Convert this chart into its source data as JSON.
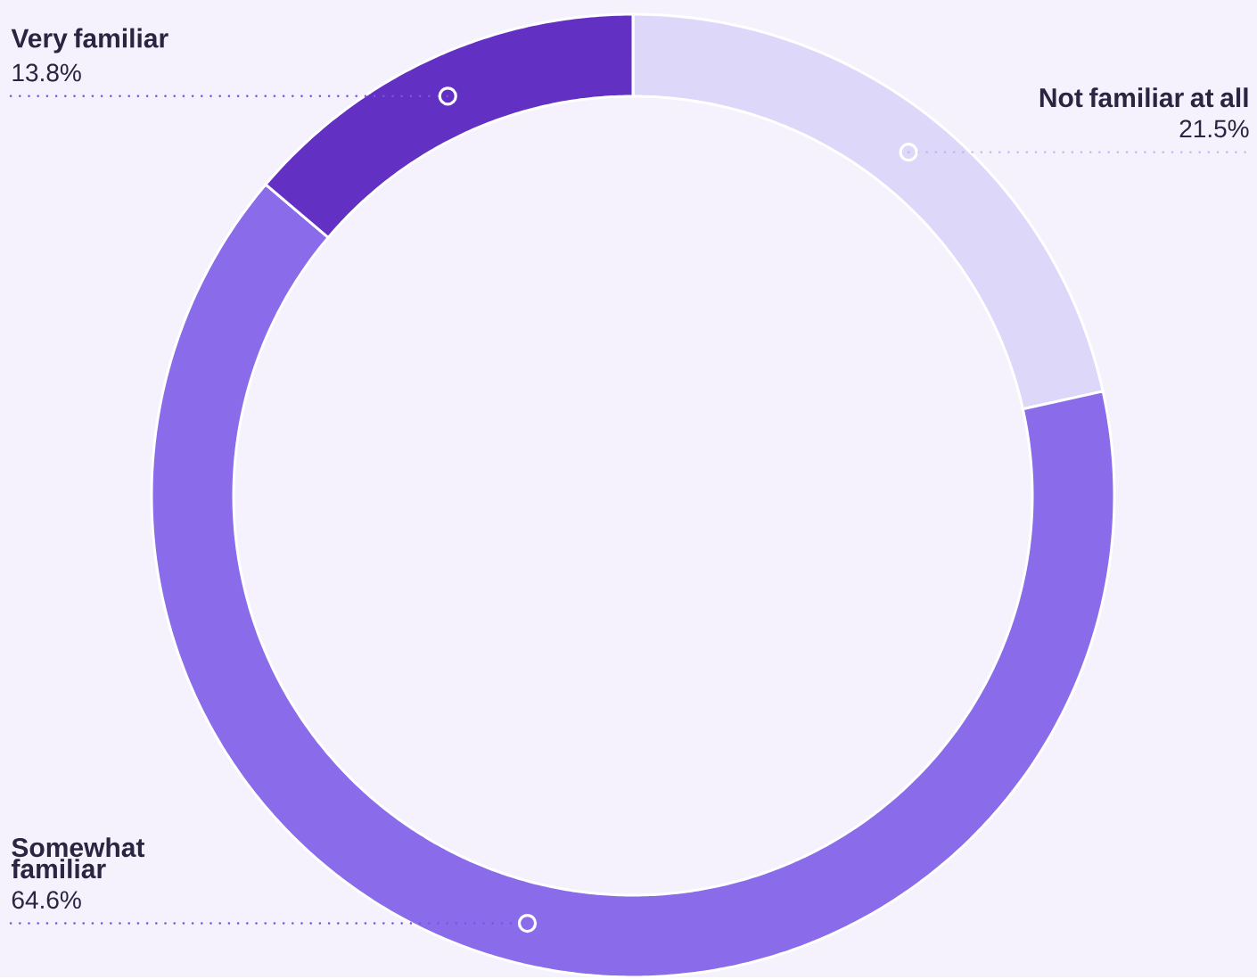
{
  "chart_data": {
    "type": "donut",
    "categories": [
      "Not familiar at all",
      "Somewhat familiar",
      "Very familiar"
    ],
    "values": [
      21.5,
      64.6,
      13.8
    ],
    "value_labels": [
      "21.5%",
      "64.6%",
      "13.8%"
    ],
    "colors": [
      "#ddd7f9",
      "#8a6be9",
      "#6330c4"
    ]
  }
}
